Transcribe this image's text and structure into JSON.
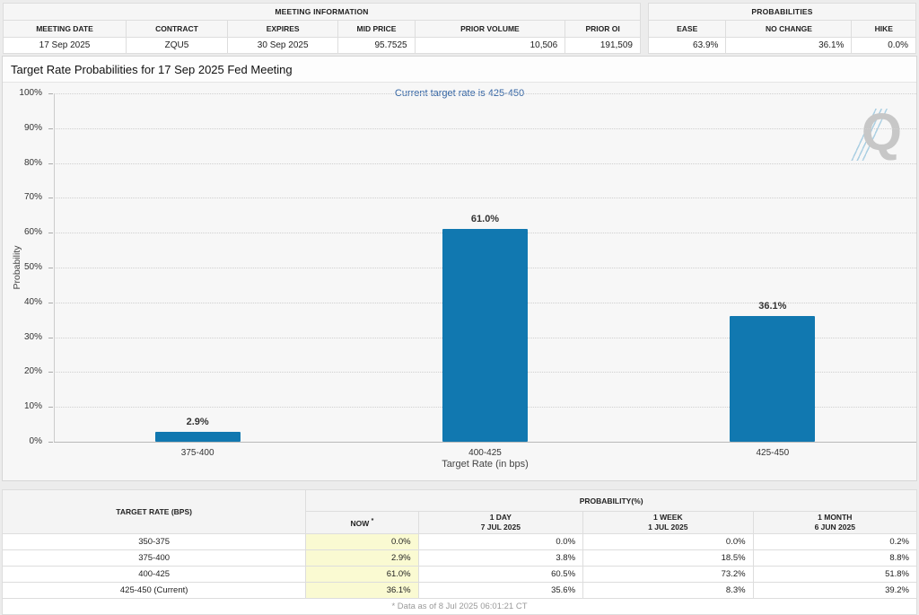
{
  "meeting_info": {
    "title": "MEETING INFORMATION",
    "columns": [
      "MEETING DATE",
      "CONTRACT",
      "EXPIRES",
      "MID PRICE",
      "PRIOR VOLUME",
      "PRIOR OI"
    ],
    "values": [
      "17 Sep 2025",
      "ZQU5",
      "30 Sep 2025",
      "95.7525",
      "10,506",
      "191,509"
    ]
  },
  "probabilities": {
    "title": "PROBABILITIES",
    "columns": [
      "EASE",
      "NO CHANGE",
      "HIKE"
    ],
    "values": [
      "63.9%",
      "36.1%",
      "0.0%"
    ]
  },
  "chart_data": {
    "type": "bar",
    "title": "Target Rate Probabilities for 17 Sep 2025 Fed Meeting",
    "subtitle": "Current target rate is 425-450",
    "categories": [
      "375-400",
      "400-425",
      "425-450"
    ],
    "values": [
      2.9,
      61.0,
      36.1
    ],
    "labels": [
      "2.9%",
      "61.0%",
      "36.1%"
    ],
    "xlabel": "Target Rate (in bps)",
    "ylabel": "Probability",
    "ylim": [
      0,
      100
    ],
    "ytick_step": 10,
    "ytick_suffix": "%",
    "grid": "horizontal-dotted",
    "legend": "none",
    "bar_color": "#1178b0"
  },
  "prob_table": {
    "rate_header": "TARGET RATE (BPS)",
    "group_header": "PROBABILITY(%)",
    "columns": [
      {
        "line1": "NOW",
        "sup": "*",
        "line2": ""
      },
      {
        "line1": "1 DAY",
        "line2": "7 JUL 2025"
      },
      {
        "line1": "1 WEEK",
        "line2": "1 JUL 2025"
      },
      {
        "line1": "1 MONTH",
        "line2": "6 JUN 2025"
      }
    ],
    "rows": [
      {
        "rate": "350-375",
        "now": "0.0%",
        "day1": "0.0%",
        "week1": "0.0%",
        "month1": "0.2%"
      },
      {
        "rate": "375-400",
        "now": "2.9%",
        "day1": "3.8%",
        "week1": "18.5%",
        "month1": "8.8%"
      },
      {
        "rate": "400-425",
        "now": "61.0%",
        "day1": "60.5%",
        "week1": "73.2%",
        "month1": "51.8%"
      },
      {
        "rate": "425-450 (Current)",
        "now": "36.1%",
        "day1": "35.6%",
        "week1": "8.3%",
        "month1": "39.2%"
      }
    ],
    "footnote": "* Data as of 8 Jul 2025 06:01:21 CT"
  },
  "colors": {
    "bar": "#1178b0",
    "subtitle_text": "#3465a4",
    "now_column_bg": "#fafad2"
  }
}
